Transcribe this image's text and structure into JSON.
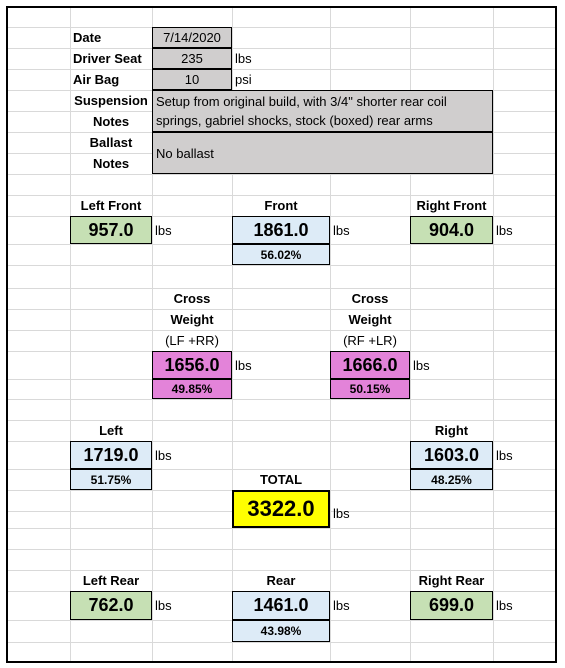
{
  "header": {
    "date": {
      "label": "Date",
      "value": "7/14/2020"
    },
    "driver_seat": {
      "label": "Driver Seat",
      "value": "235",
      "unit": "lbs"
    },
    "air_bag": {
      "label": "Air Bag",
      "value": "10",
      "unit": "psi"
    },
    "suspension_notes": {
      "label": [
        "Suspension",
        "Notes"
      ],
      "text": [
        "Setup from original build, with 3/4\" shorter rear coil",
        "springs, gabriel shocks, stock (boxed) rear arms"
      ]
    },
    "ballast_notes": {
      "label": [
        "Ballast",
        "Notes"
      ],
      "text": "No ballast"
    }
  },
  "weights": {
    "left_front": {
      "label": "Left Front",
      "value": "957.0",
      "unit": "lbs"
    },
    "front": {
      "label": "Front",
      "value": "1861.0",
      "unit": "lbs",
      "percent": "56.02%"
    },
    "right_front": {
      "label": "Right Front",
      "value": "904.0",
      "unit": "lbs"
    },
    "cross_lf_rr": {
      "label": [
        "Cross",
        "Weight",
        "(LF +RR)"
      ],
      "value": "1656.0",
      "unit": "lbs",
      "percent": "49.85%"
    },
    "cross_rf_lr": {
      "label": [
        "Cross",
        "Weight",
        "(RF +LR)"
      ],
      "value": "1666.0",
      "unit": "lbs",
      "percent": "50.15%"
    },
    "left": {
      "label": "Left",
      "value": "1719.0",
      "unit": "lbs",
      "percent": "51.75%"
    },
    "right": {
      "label": "Right",
      "value": "1603.0",
      "unit": "lbs",
      "percent": "48.25%"
    },
    "total": {
      "label": "TOTAL",
      "value": "3322.0",
      "unit": "lbs"
    },
    "left_rear": {
      "label": "Left Rear",
      "value": "762.0",
      "unit": "lbs"
    },
    "rear": {
      "label": "Rear",
      "value": "1461.0",
      "unit": "lbs",
      "percent": "43.98%"
    },
    "right_rear": {
      "label": "Right Rear",
      "value": "699.0",
      "unit": "lbs"
    }
  }
}
